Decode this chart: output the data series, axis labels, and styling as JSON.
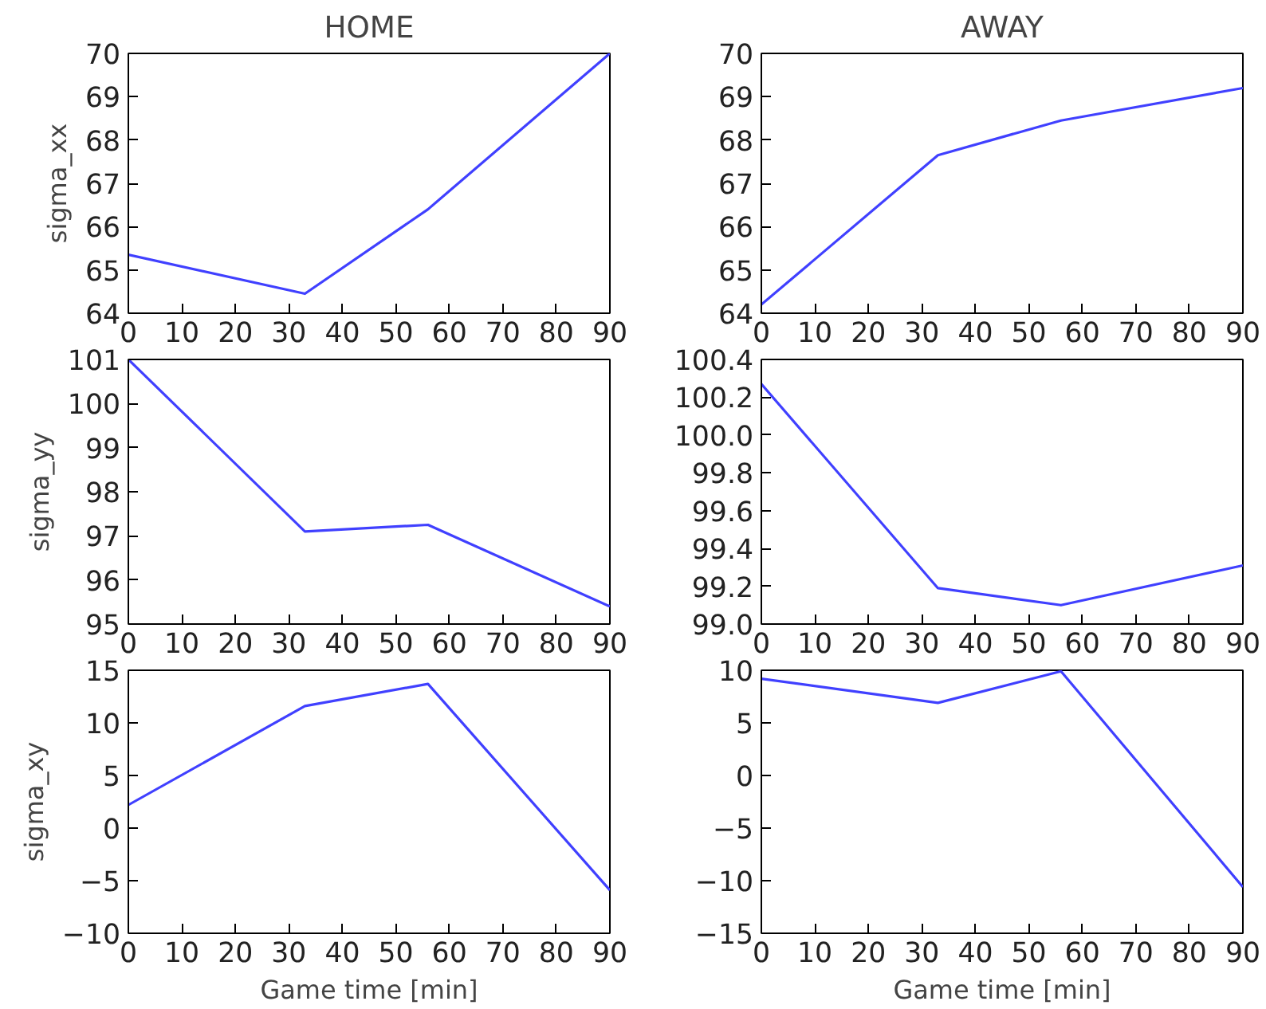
{
  "chart_data": [
    {
      "type": "line",
      "title": "HOME",
      "ylabel": "sigma_xx",
      "x": [
        0,
        33,
        56,
        90
      ],
      "series": [
        {
          "color": "#4040ff",
          "values": [
            65.35,
            64.45,
            66.4,
            70.0
          ]
        }
      ],
      "xlim": [
        0,
        90
      ],
      "xticks": [
        0,
        10,
        20,
        30,
        40,
        50,
        60,
        70,
        80,
        90
      ],
      "ylim": [
        64,
        70
      ],
      "yticks": [
        64,
        65,
        66,
        67,
        68,
        69,
        70
      ]
    },
    {
      "type": "line",
      "title": "AWAY",
      "x": [
        0,
        33,
        56,
        90
      ],
      "series": [
        {
          "color": "#4040ff",
          "values": [
            64.2,
            67.65,
            68.45,
            69.2
          ]
        }
      ],
      "xlim": [
        0,
        90
      ],
      "xticks": [
        0,
        10,
        20,
        30,
        40,
        50,
        60,
        70,
        80,
        90
      ],
      "ylim": [
        64,
        70
      ],
      "yticks": [
        64,
        65,
        66,
        67,
        68,
        69,
        70
      ]
    },
    {
      "type": "line",
      "ylabel": "sigma_yy",
      "x": [
        0,
        33,
        56,
        90
      ],
      "series": [
        {
          "color": "#4040ff",
          "values": [
            101.0,
            97.1,
            97.25,
            95.4
          ]
        }
      ],
      "xlim": [
        0,
        90
      ],
      "xticks": [
        0,
        10,
        20,
        30,
        40,
        50,
        60,
        70,
        80,
        90
      ],
      "ylim": [
        95,
        101
      ],
      "yticks": [
        95,
        96,
        97,
        98,
        99,
        100,
        101
      ]
    },
    {
      "type": "line",
      "x": [
        0,
        33,
        56,
        90
      ],
      "series": [
        {
          "color": "#4040ff",
          "values": [
            100.27,
            99.19,
            99.1,
            99.31
          ]
        }
      ],
      "xlim": [
        0,
        90
      ],
      "xticks": [
        0,
        10,
        20,
        30,
        40,
        50,
        60,
        70,
        80,
        90
      ],
      "ylim": [
        99.0,
        100.4
      ],
      "yticks": [
        {
          "value": 99.0,
          "label": "99.0"
        },
        99.2,
        99.4,
        99.6,
        99.8,
        {
          "value": 100.0,
          "label": "100.0"
        },
        100.2,
        100.4
      ]
    },
    {
      "type": "line",
      "ylabel": "sigma_xy",
      "xlabel": "Game time [min]",
      "x": [
        0,
        33,
        56,
        90
      ],
      "series": [
        {
          "color": "#4040ff",
          "values": [
            2.2,
            11.6,
            13.7,
            -5.9
          ]
        }
      ],
      "xlim": [
        0,
        90
      ],
      "xticks": [
        0,
        10,
        20,
        30,
        40,
        50,
        60,
        70,
        80,
        90
      ],
      "ylim": [
        -10,
        15
      ],
      "yticks": [
        -10,
        -5,
        0,
        5,
        10,
        15
      ]
    },
    {
      "type": "line",
      "xlabel": "Game time [min]",
      "x": [
        0,
        33,
        56,
        90
      ],
      "series": [
        {
          "color": "#4040ff",
          "values": [
            9.2,
            6.9,
            9.9,
            -10.6
          ]
        }
      ],
      "xlim": [
        0,
        90
      ],
      "xticks": [
        0,
        10,
        20,
        30,
        40,
        50,
        60,
        70,
        80,
        90
      ],
      "ylim": [
        -15,
        10
      ],
      "yticks": [
        -15,
        -10,
        -5,
        0,
        5,
        10
      ]
    }
  ]
}
